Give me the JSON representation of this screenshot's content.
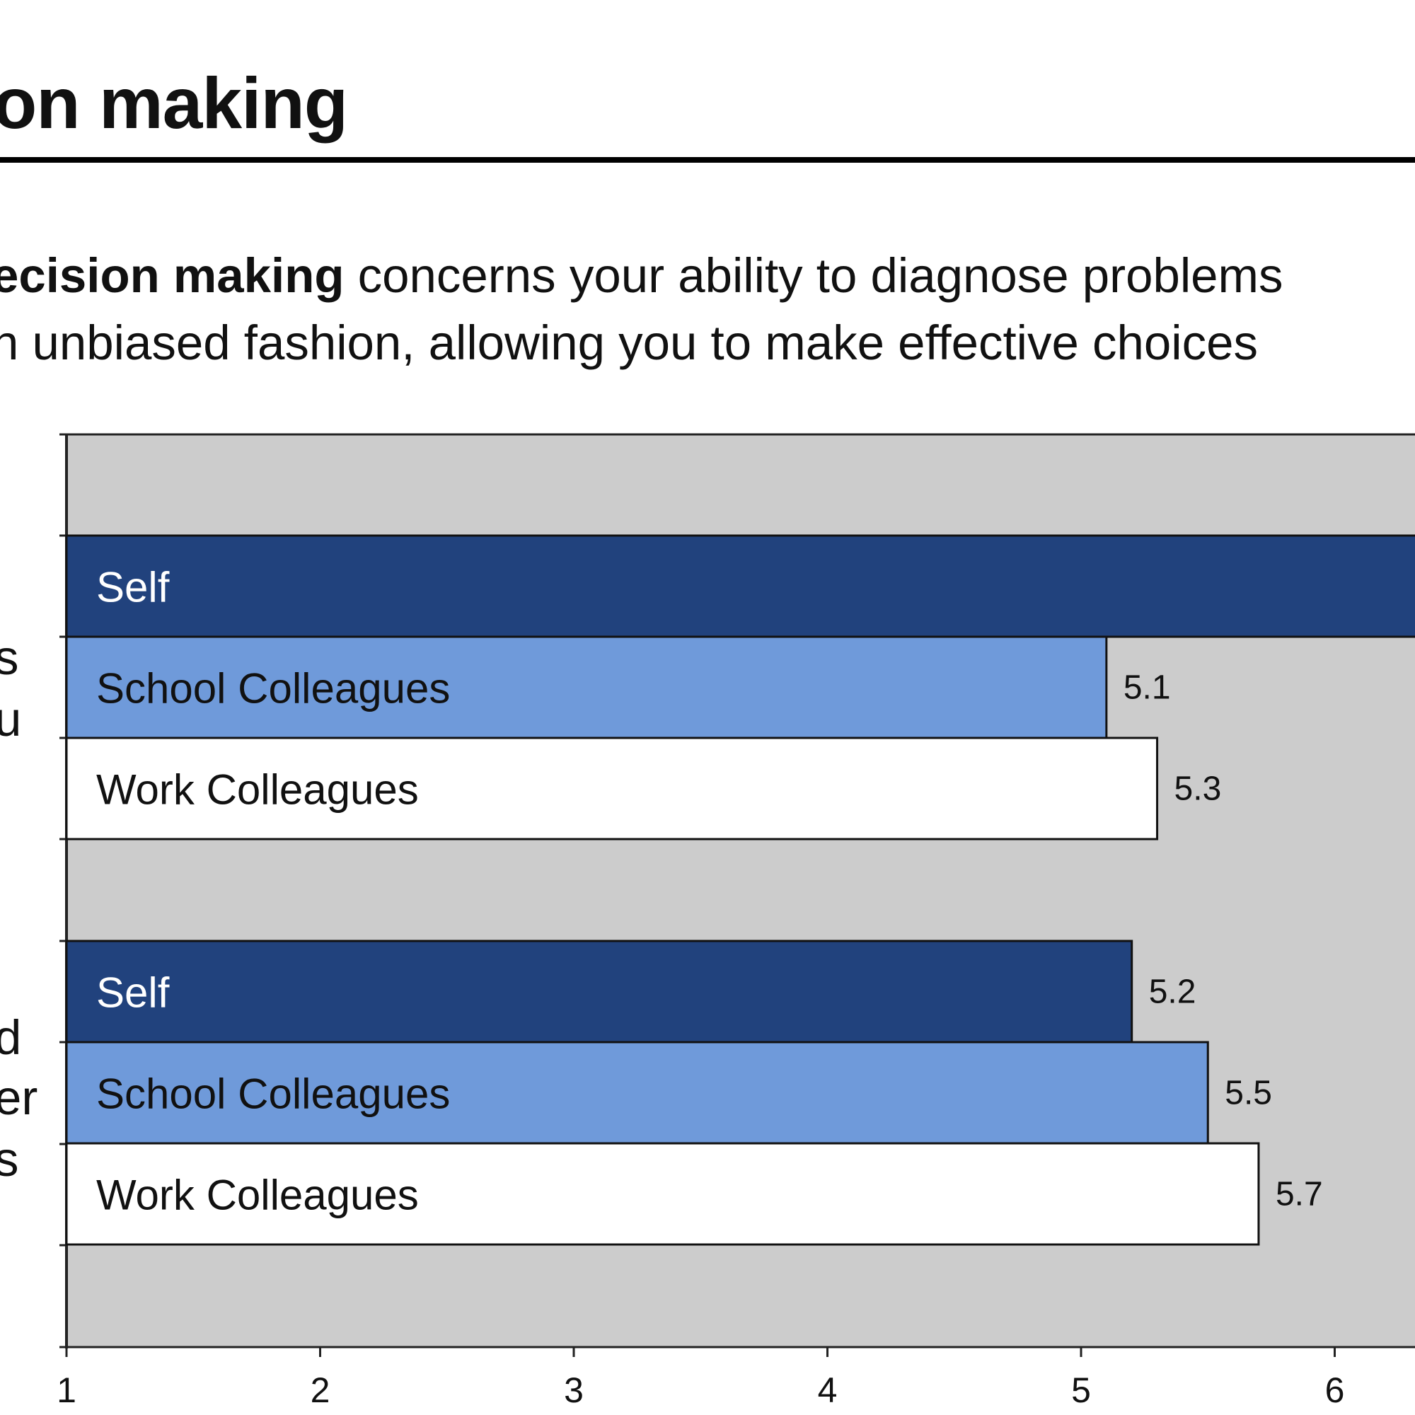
{
  "header": {
    "title": "on making"
  },
  "description": {
    "line1_bold": "ecision making",
    "line1_rest": " concerns your ability to diagnose problems",
    "line2": "n unbiased fashion, allowing you to make effective choices"
  },
  "side_fragments": {
    "group1": [
      "s",
      "u"
    ],
    "group2": [
      "d",
      "er",
      "s"
    ]
  },
  "colors": {
    "plot_background": "#cccccc",
    "self": "#21427d",
    "school_colleagues": "#6f9ada",
    "work_colleagues": "#ffffff"
  },
  "chart_data": {
    "type": "bar",
    "orientation": "horizontal",
    "xlim": [
      1,
      6.5
    ],
    "x_ticks": [
      1,
      2,
      3,
      4,
      5,
      6
    ],
    "legend": "none (series names printed inside bars)",
    "groups": [
      {
        "bars": [
          {
            "series": "Self",
            "value": 6.5,
            "label": ""
          },
          {
            "series": "School Colleagues",
            "value": 5.1,
            "label": "5.1"
          },
          {
            "series": "Work Colleagues",
            "value": 5.3,
            "label": "5.3"
          }
        ]
      },
      {
        "bars": [
          {
            "series": "Self",
            "value": 5.2,
            "label": "5.2"
          },
          {
            "series": "School Colleagues",
            "value": 5.5,
            "label": "5.5"
          },
          {
            "series": "Work Colleagues",
            "value": 5.7,
            "label": "5.7"
          }
        ]
      }
    ]
  }
}
